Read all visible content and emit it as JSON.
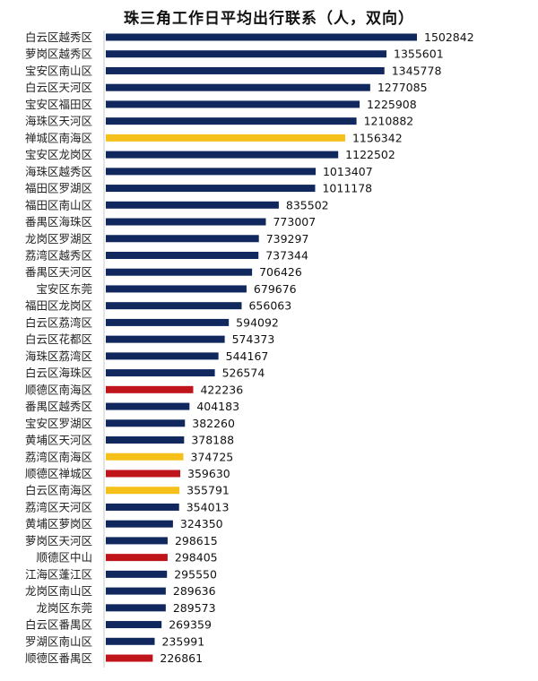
{
  "chart_data": {
    "type": "bar",
    "orientation": "horizontal",
    "title": "珠三角工作日平均出行联系（人，双向）",
    "categories": [
      "白云区越秀区",
      "萝岗区越秀区",
      "宝安区南山区",
      "白云区天河区",
      "宝安区福田区",
      "海珠区天河区",
      "禅城区南海区",
      "宝安区龙岗区",
      "海珠区越秀区",
      "福田区罗湖区",
      "福田区南山区",
      "番禺区海珠区",
      "龙岗区罗湖区",
      "荔湾区越秀区",
      "番禺区天河区",
      "宝安区东莞",
      "福田区龙岗区",
      "白云区荔湾区",
      "白云区花都区",
      "海珠区荔湾区",
      "白云区海珠区",
      "顺德区南海区",
      "番禺区越秀区",
      "宝安区罗湖区",
      "黄埔区天河区",
      "荔湾区南海区",
      "顺德区禅城区",
      "白云区南海区",
      "荔湾区天河区",
      "黄埔区萝岗区",
      "萝岗区天河区",
      "顺德区中山",
      "江海区蓬江区",
      "龙岗区南山区",
      "龙岗区东莞",
      "白云区番禺区",
      "罗湖区南山区",
      "顺德区番禺区"
    ],
    "values": [
      1502842,
      1355601,
      1345778,
      1277085,
      1225908,
      1210882,
      1156342,
      1122502,
      1013407,
      1011178,
      835502,
      773007,
      739297,
      737344,
      706426,
      679676,
      656063,
      594092,
      574373,
      544167,
      526574,
      422236,
      404183,
      382260,
      378188,
      374725,
      359630,
      355791,
      354013,
      324350,
      298615,
      298405,
      295550,
      289636,
      289573,
      269359,
      235991,
      226861
    ],
    "value_labels": [
      "1502842",
      "1355601",
      "1345778",
      "1277085",
      "1225908",
      "1210882",
      "1156342",
      "1122502",
      "1013407",
      "1011178",
      "835502",
      "773007",
      "739297",
      "737344",
      "706426",
      "679676",
      "656063",
      "594092",
      "574373",
      "544167",
      "526574",
      "422236",
      "404183",
      "382260",
      "378188",
      "374725",
      "359630",
      "355791",
      "354013",
      "324350",
      "298615",
      "298405",
      "295550",
      "289636",
      "289573",
      "269359",
      "235991",
      "226861"
    ],
    "bar_groups": [
      "navy",
      "navy",
      "navy",
      "navy",
      "navy",
      "navy",
      "gold",
      "navy",
      "navy",
      "navy",
      "navy",
      "navy",
      "navy",
      "navy",
      "navy",
      "navy",
      "navy",
      "navy",
      "navy",
      "navy",
      "navy",
      "red",
      "navy",
      "navy",
      "navy",
      "gold",
      "red",
      "gold",
      "navy",
      "navy",
      "navy",
      "red",
      "navy",
      "navy",
      "navy",
      "navy",
      "navy",
      "red"
    ],
    "colors": {
      "navy": "#10285e",
      "gold": "#f5c01a",
      "red": "#c0141b"
    },
    "xlim": [
      0,
      1502842
    ],
    "grid": false,
    "legend": "none"
  }
}
